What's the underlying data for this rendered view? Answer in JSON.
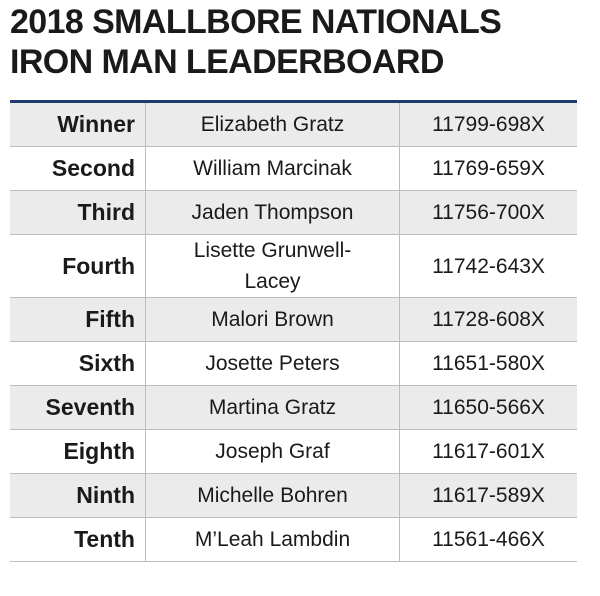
{
  "header": {
    "title_lines": [
      "2018 SMALLBORE NATIONALS",
      "IRON MAN LEADERBOARD"
    ]
  },
  "table": {
    "rows": [
      [
        "Winner",
        "Elizabeth Gratz",
        "11799-698X"
      ],
      [
        "Second",
        "William Marcinak",
        "11769-659X"
      ],
      [
        "Third",
        "Jaden Thompson",
        "11756-700X"
      ],
      [
        "Fourth",
        "Lisette Grunwell-Lacey",
        "11742-643X"
      ],
      [
        "Fifth",
        "Malori Brown",
        "11728-608X"
      ],
      [
        "Sixth",
        "Josette Peters",
        "11651-580X"
      ],
      [
        "Seventh",
        "Martina Gratz",
        "11650-566X"
      ],
      [
        "Eighth",
        "Joseph Graf",
        "11617-601X"
      ],
      [
        "Ninth",
        "Michelle Bohren",
        "11617-589X"
      ],
      [
        "Tenth",
        "M’Leah Lambdin",
        "11561-466X"
      ]
    ]
  }
}
